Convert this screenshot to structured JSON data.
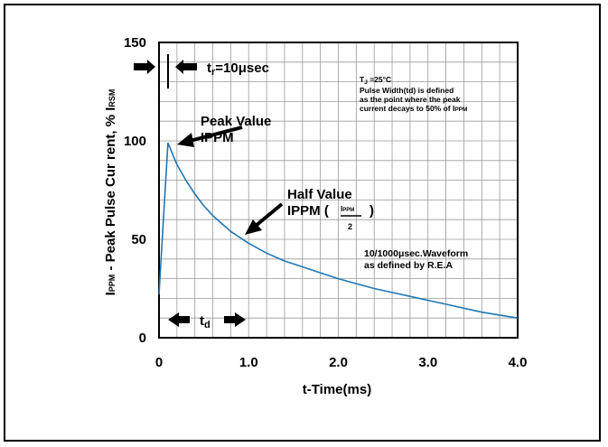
{
  "chart_data": {
    "type": "line",
    "xlabel": "t-Time(ms)",
    "ylabel_main": "I",
    "ylabel_sub": "PPM",
    "ylabel_rest": " - Peak Pulse Cur rent, % I",
    "ylabel_sub2": "RSM",
    "xlim": [
      0,
      4.0
    ],
    "ylim": [
      0,
      150
    ],
    "x_ticks": [
      "0",
      "1.0",
      "2.0",
      "3.0",
      "4.0"
    ],
    "y_ticks": [
      "0",
      "50",
      "100",
      "150"
    ],
    "grid": true,
    "series": [
      {
        "color": "#1f77b4",
        "x": [
          0,
          0.1,
          0.2,
          0.3,
          0.4,
          0.5,
          0.6,
          0.7,
          0.8,
          0.9,
          1.0,
          1.2,
          1.4,
          1.6,
          1.8,
          2.0,
          2.2,
          2.4,
          2.6,
          2.8,
          3.0,
          3.2,
          3.4,
          3.6,
          3.8,
          4.0
        ],
        "y": [
          22,
          99,
          88,
          80,
          73,
          67,
          62,
          58,
          54,
          51,
          48,
          43,
          39,
          36,
          33,
          30,
          27.5,
          25,
          23,
          21,
          19,
          17,
          15,
          13,
          11.5,
          10
        ]
      }
    ],
    "annotations": {
      "tr_label": "t",
      "tr_sub": "r",
      "tr_value": "=10μsec",
      "peak_line1": "Peak Value",
      "peak_line2": "IPPM",
      "half_line1": "Half Value",
      "half_line2": "IPPM (",
      "half_frac_num": "I",
      "half_frac_num_sub": "PPM",
      "half_frac_den": "2",
      "half_close": ")",
      "tj_label": "T",
      "tj_sub": "J",
      "tj_value": " =25°C",
      "pw_line1": "Pulse Width(td) is defined",
      "pw_line2": "as the point where the peak",
      "pw_line3": "current decays to 50% of I",
      "pw_line3_sub": "PPM",
      "wave_line1": "10/1000μsec.Waveform",
      "wave_line2": "as defined by R.E.A",
      "td_label": "t",
      "td_sub": "d"
    }
  }
}
